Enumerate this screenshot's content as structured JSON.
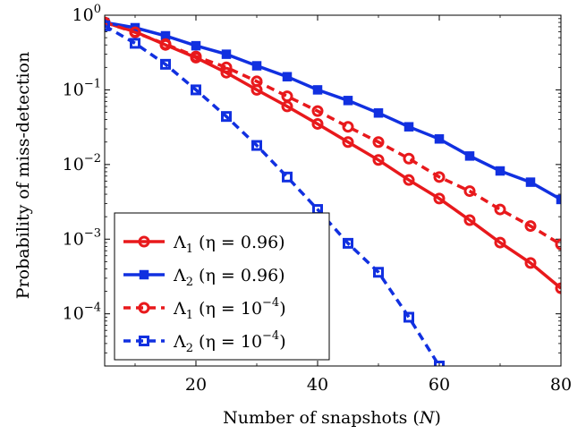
{
  "chart_data": {
    "type": "line",
    "xlabel": "Number of snapshots (N)",
    "ylabel": "Probability of miss-detection",
    "xlim": [
      5,
      80
    ],
    "ylim": [
      2e-05,
      1
    ],
    "y_scale": "log",
    "grid": false,
    "legend_position": "bottom-left",
    "x_ticks": [
      {
        "value": 20,
        "label": "20"
      },
      {
        "value": 40,
        "label": "40"
      },
      {
        "value": 60,
        "label": "60"
      },
      {
        "value": 80,
        "label": "80"
      }
    ],
    "y_ticks": [
      {
        "value": 1,
        "base": "10",
        "exp": "0"
      },
      {
        "value": 0.1,
        "base": "10",
        "exp": "−1"
      },
      {
        "value": 0.01,
        "base": "10",
        "exp": "−2"
      },
      {
        "value": 0.001,
        "base": "10",
        "exp": "−3"
      },
      {
        "value": 0.0001,
        "base": "10",
        "exp": "−4"
      }
    ],
    "series": [
      {
        "name": "Λ1 (η = 0.96)",
        "legend_sym": "Λ",
        "legend_sub": "1",
        "legend_rest": " (η = 0.96)",
        "color": "#e8191c",
        "dashed": false,
        "marker": "circle",
        "x": [
          5,
          10,
          15,
          20,
          25,
          30,
          35,
          40,
          45,
          50,
          55,
          60,
          65,
          70,
          75,
          80
        ],
        "y": [
          0.8,
          0.6,
          0.4,
          0.27,
          0.17,
          0.1,
          0.06,
          0.035,
          0.02,
          0.0115,
          0.0062,
          0.0035,
          0.0018,
          0.0009,
          0.00048,
          0.00022
        ]
      },
      {
        "name": "Λ2 (η = 0.96)",
        "legend_sym": "Λ",
        "legend_sub": "2",
        "legend_rest": " (η = 0.96)",
        "color": "#1130e0",
        "dashed": false,
        "marker": "square",
        "x": [
          5,
          10,
          15,
          20,
          25,
          30,
          35,
          40,
          45,
          50,
          55,
          60,
          65,
          70,
          75,
          80
        ],
        "y": [
          0.8,
          0.68,
          0.53,
          0.39,
          0.3,
          0.21,
          0.15,
          0.1,
          0.072,
          0.049,
          0.032,
          0.022,
          0.013,
          0.0082,
          0.0058,
          0.0034
        ]
      },
      {
        "name": "Λ1 (η = 10−4)",
        "legend_sym": "Λ",
        "legend_sub": "1",
        "legend_rest": " (η = 10",
        "legend_sup": "−4",
        "legend_end": ")",
        "color": "#e8191c",
        "dashed": true,
        "marker": "circle",
        "x": [
          5,
          10,
          15,
          20,
          25,
          30,
          35,
          40,
          45,
          50,
          55,
          60,
          65,
          70,
          75,
          80
        ],
        "y": [
          0.8,
          0.59,
          0.41,
          0.28,
          0.2,
          0.13,
          0.082,
          0.052,
          0.032,
          0.02,
          0.012,
          0.0068,
          0.0044,
          0.0025,
          0.0015,
          0.00085
        ]
      },
      {
        "name": "Λ2 (η = 10−4)",
        "legend_sym": "Λ",
        "legend_sub": "2",
        "legend_rest": " (η = 10",
        "legend_sup": "−4",
        "legend_end": ")",
        "color": "#1130e0",
        "dashed": true,
        "marker": "square",
        "x": [
          5,
          10,
          15,
          20,
          25,
          30,
          35,
          40,
          45,
          50,
          55,
          60
        ],
        "y": [
          0.72,
          0.42,
          0.22,
          0.1,
          0.044,
          0.018,
          0.0068,
          0.0025,
          0.00088,
          0.00036,
          9e-05,
          2e-05
        ]
      }
    ]
  }
}
